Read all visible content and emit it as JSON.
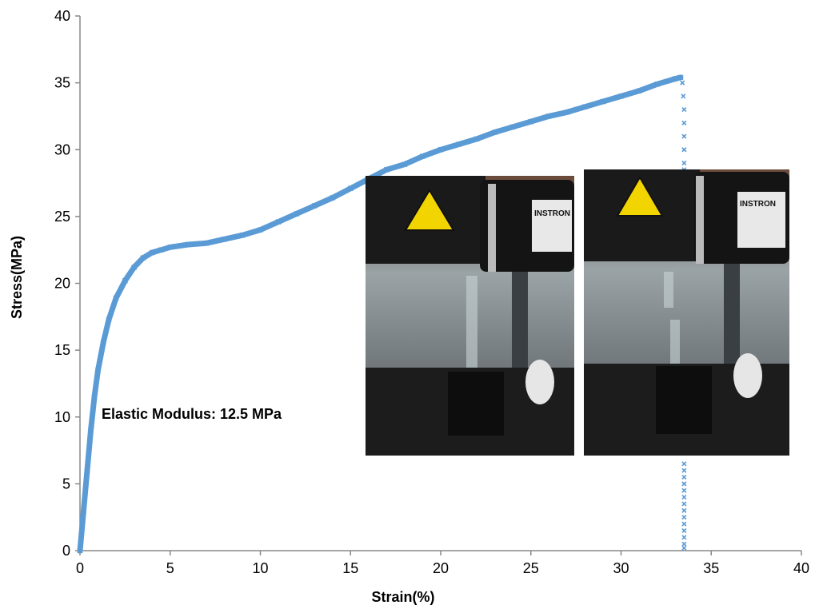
{
  "chart_data": {
    "type": "scatter",
    "title": "",
    "xlabel": "Strain(%)",
    "ylabel": "Stress(MPa)",
    "xlim": [
      0,
      40
    ],
    "ylim": [
      0,
      40
    ],
    "xticks": [
      0,
      5,
      10,
      15,
      20,
      25,
      30,
      35,
      40
    ],
    "yticks": [
      0,
      5,
      10,
      15,
      20,
      25,
      30,
      35,
      40
    ],
    "grid": false,
    "legend": "none",
    "series_color": "#5b9bd5",
    "annotation": "Elastic Modulus: 12.5 MPa",
    "series": [
      {
        "marker": "x",
        "x": [
          0,
          0.2,
          0.4,
          0.6,
          0.8,
          1.0,
          1.3,
          1.6,
          2.0,
          2.5,
          3.0,
          3.5,
          4.0,
          4.5,
          5.0,
          6.0,
          7.0,
          8.0,
          9.0,
          10.0,
          11.0,
          12.0,
          13.0,
          14.0,
          15.0,
          16.0,
          17.0,
          18.0,
          19.0,
          20.0,
          21.0,
          22.0,
          23.0,
          24.0,
          25.0,
          26.0,
          27.0,
          28.0,
          29.0,
          30.0,
          31.0,
          32.0,
          33.0,
          33.3
        ],
        "y": [
          0,
          3.0,
          6.0,
          9.0,
          11.5,
          13.5,
          15.6,
          17.3,
          18.9,
          20.2,
          21.2,
          21.9,
          22.3,
          22.5,
          22.7,
          22.9,
          23.0,
          23.3,
          23.6,
          24.0,
          24.6,
          25.2,
          25.8,
          26.4,
          27.1,
          27.8,
          28.5,
          28.9,
          29.5,
          30.0,
          30.4,
          30.8,
          31.3,
          31.7,
          32.1,
          32.5,
          32.8,
          33.2,
          33.6,
          34.0,
          34.4,
          34.9,
          35.3,
          35.4
        ]
      },
      {
        "marker": "x",
        "x": [
          33.4,
          33.45,
          33.5,
          33.5,
          33.5,
          33.5,
          33.5,
          33.5,
          33.5,
          33.5,
          33.5,
          33.5,
          33.5,
          33.5,
          33.5,
          33.5,
          33.5,
          33.5,
          33.5,
          33.5,
          33.5,
          33.5
        ],
        "y": [
          35.0,
          34.0,
          33.0,
          32.0,
          31.0,
          30.0,
          29.0,
          28.5,
          6.5,
          6.0,
          5.5,
          5.0,
          4.5,
          4.0,
          3.5,
          3.0,
          2.5,
          2.0,
          1.5,
          1.0,
          0.5,
          0.2
        ]
      }
    ]
  },
  "insets": [
    {
      "id": "before-test",
      "label_text": "INSTRON"
    },
    {
      "id": "after-break",
      "label_text": "INSTRON"
    }
  ]
}
